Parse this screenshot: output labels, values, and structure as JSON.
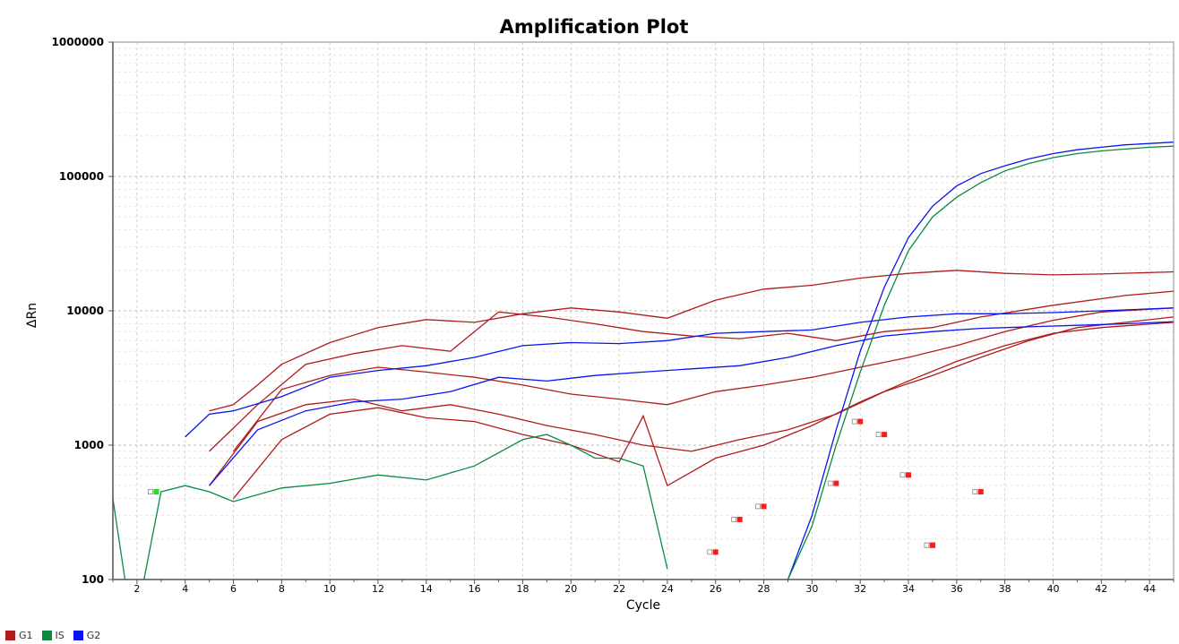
{
  "chart_data": {
    "type": "line",
    "title": "Amplification Plot",
    "xlabel": "Cycle",
    "ylabel": "ΔRn",
    "xlim": [
      1,
      45
    ],
    "ylim": [
      100,
      1000000
    ],
    "yscale": "log",
    "grid": true,
    "x_ticks": [
      2,
      4,
      6,
      8,
      10,
      12,
      14,
      16,
      18,
      20,
      22,
      24,
      26,
      28,
      30,
      32,
      34,
      36,
      38,
      40,
      42,
      44
    ],
    "y_ticks": [
      {
        "value": 100,
        "label": "100"
      },
      {
        "value": 1000,
        "label": "1000"
      },
      {
        "value": 10000,
        "label": "10000"
      },
      {
        "value": 100000,
        "label": "100000"
      },
      {
        "value": 1000000,
        "label": "1000000"
      }
    ],
    "legend_position": "bottom-left",
    "series": [
      {
        "name": "G1",
        "color": "#b01c1c",
        "curves": [
          {
            "x": [
              5,
              6,
              7,
              8,
              10,
              12,
              14,
              16,
              18,
              20,
              22,
              24,
              26,
              28,
              30,
              32,
              34,
              36,
              38,
              40,
              42,
              45
            ],
            "y": [
              1800,
              2000,
              2800,
              4000,
              5800,
              7500,
              8600,
              8200,
              9500,
              10500,
              9800,
              8800,
              12000,
              14500,
              15500,
              17500,
              19000,
              20000,
              19000,
              18500,
              18800,
              19500
            ]
          },
          {
            "x": [
              5,
              7,
              9,
              11,
              13,
              15,
              16,
              17,
              19,
              21,
              23,
              25,
              27,
              29,
              31,
              33,
              35,
              37,
              40,
              43,
              45
            ],
            "y": [
              900,
              2000,
              4000,
              4800,
              5500,
              5000,
              7000,
              9800,
              9000,
              8000,
              7000,
              6500,
              6200,
              6800,
              6000,
              7000,
              7500,
              9000,
              11000,
              13000,
              14000
            ]
          },
          {
            "x": [
              6,
              8,
              10,
              12,
              14,
              16,
              18,
              20,
              22,
              24,
              26,
              28,
              30,
              32,
              34,
              36,
              38,
              40,
              42,
              45
            ],
            "y": [
              900,
              2600,
              3300,
              3800,
              3500,
              3200,
              2800,
              2400,
              2200,
              2000,
              2500,
              2800,
              3200,
              3800,
              4500,
              5500,
              7000,
              8500,
              9800,
              10500
            ]
          },
          {
            "x": [
              5,
              7,
              9,
              11,
              13,
              15,
              17,
              19,
              21,
              23,
              25,
              27,
              29,
              31,
              33,
              35,
              37,
              39,
              41,
              43,
              45
            ],
            "y": [
              500,
              1500,
              2000,
              2200,
              1800,
              2000,
              1700,
              1400,
              1200,
              1000,
              900,
              1100,
              1300,
              1700,
              2500,
              3300,
              4500,
              6000,
              7500,
              8200,
              9000
            ]
          },
          {
            "x": [
              6,
              8,
              10,
              12,
              14,
              16,
              18,
              20,
              22,
              23,
              24,
              26,
              28,
              30,
              32,
              34,
              36,
              38,
              40,
              42,
              45
            ],
            "y": [
              400,
              1100,
              1700,
              1900,
              1600,
              1500,
              1200,
              1000,
              750,
              1650,
              500,
              800,
              1000,
              1400,
              2100,
              3000,
              4200,
              5500,
              6800,
              7500,
              8200
            ]
          }
        ],
        "ct_markers": [
          {
            "x": 26,
            "y": 160
          },
          {
            "x": 27,
            "y": 280
          },
          {
            "x": 28,
            "y": 350
          },
          {
            "x": 31,
            "y": 520
          },
          {
            "x": 32,
            "y": 1500
          },
          {
            "x": 33,
            "y": 1200
          },
          {
            "x": 34,
            "y": 600
          },
          {
            "x": 35,
            "y": 180
          },
          {
            "x": 37,
            "y": 450
          }
        ]
      },
      {
        "name": "IS",
        "color": "#0a8a42",
        "curves": [
          {
            "x": [
              1,
              1.5,
              2,
              3,
              4,
              5,
              6,
              8,
              10,
              12,
              14,
              16,
              18,
              19,
              20,
              21,
              22,
              23,
              24
            ],
            "y": [
              400,
              100,
              20,
              450,
              500,
              450,
              380,
              480,
              520,
              600,
              550,
              700,
              1100,
              1200,
              1000,
              800,
              800,
              700,
              120
            ]
          },
          {
            "x": [
              29,
              30,
              31,
              32,
              33,
              34,
              35,
              36,
              37,
              38,
              39,
              40,
              41,
              42,
              43,
              44,
              45
            ],
            "y": [
              100,
              250,
              1000,
              3500,
              11000,
              28000,
              50000,
              70000,
              90000,
              110000,
              125000,
              138000,
              148000,
              155000,
              160000,
              165000,
              168000
            ]
          }
        ],
        "ct_markers": [
          {
            "x": 2.8,
            "y": 450
          }
        ]
      },
      {
        "name": "G2",
        "color": "#0a14f0",
        "curves": [
          {
            "x": [
              4,
              5,
              6,
              8,
              10,
              12,
              14,
              16,
              18,
              20,
              22,
              24,
              26,
              28,
              30,
              32,
              34,
              36,
              38,
              40,
              42,
              45
            ],
            "y": [
              1150,
              1700,
              1800,
              2300,
              3200,
              3600,
              3900,
              4500,
              5500,
              5800,
              5700,
              6000,
              6800,
              7000,
              7200,
              8200,
              9000,
              9500,
              9500,
              9700,
              10000,
              10500
            ]
          },
          {
            "x": [
              5,
              7,
              9,
              11,
              13,
              15,
              17,
              19,
              21,
              23,
              25,
              27,
              29,
              31,
              33,
              35,
              37,
              39,
              41,
              43,
              45
            ],
            "y": [
              500,
              1300,
              1800,
              2100,
              2200,
              2500,
              3200,
              3000,
              3300,
              3500,
              3700,
              3900,
              4500,
              5500,
              6500,
              7000,
              7400,
              7600,
              7800,
              8000,
              8300
            ]
          },
          {
            "x": [
              29,
              30,
              31,
              32,
              33,
              34,
              35,
              36,
              37,
              38,
              39,
              40,
              41,
              42,
              43,
              44,
              45
            ],
            "y": [
              100,
              300,
              1300,
              5000,
              15000,
              35000,
              60000,
              85000,
              105000,
              120000,
              135000,
              148000,
              158000,
              165000,
              172000,
              176000,
              180000
            ]
          }
        ],
        "ct_markers": [
          {
            "x": 35,
            "y": 180
          }
        ]
      }
    ]
  },
  "legend": {
    "items": [
      {
        "label": "G1",
        "color": "#b01c1c"
      },
      {
        "label": "IS",
        "color": "#0a8a42"
      },
      {
        "label": "G2",
        "color": "#0a14f0"
      }
    ]
  }
}
